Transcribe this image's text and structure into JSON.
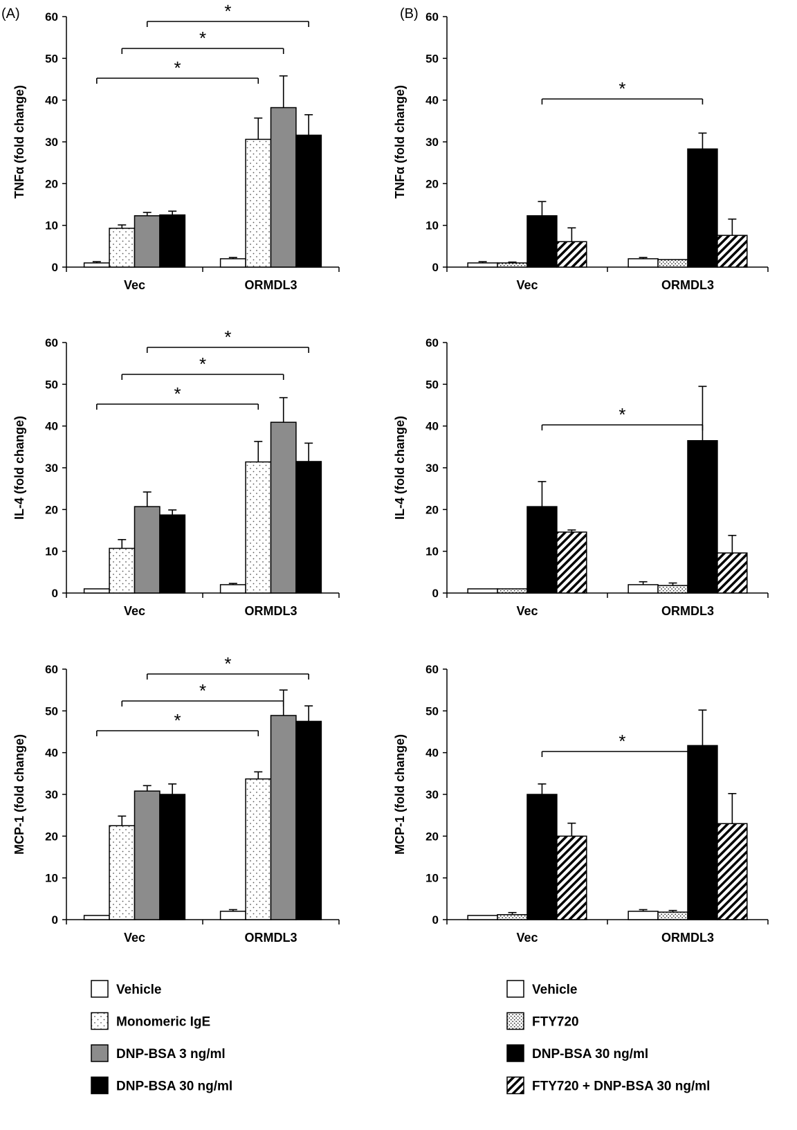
{
  "panels": [
    {
      "label": "(A)"
    },
    {
      "label": "(B)"
    }
  ],
  "colors": {
    "vehicle": "#ffffff",
    "monomeric_ige": "#ffffff",
    "dnp_3": "#8c8c8c",
    "dnp_30": "#000000",
    "fty720": "#ffffff",
    "fty720_dnp": "#ffffff",
    "stroke": "#000000"
  },
  "legends": [
    {
      "entries": [
        {
          "label": "Vehicle",
          "pattern": "vehicle"
        },
        {
          "label": "Monomeric IgE",
          "pattern": "dots"
        },
        {
          "label": "DNP-BSA 3 ng/ml",
          "pattern": "gray"
        },
        {
          "label": "DNP-BSA 30 ng/ml",
          "pattern": "black"
        }
      ]
    },
    {
      "entries": [
        {
          "label": "Vehicle",
          "pattern": "vehicle"
        },
        {
          "label": "FTY720",
          "pattern": "densedots"
        },
        {
          "label": "DNP-BSA 30 ng/ml",
          "pattern": "black"
        },
        {
          "label": "FTY720 + DNP-BSA 30 ng/ml",
          "pattern": "hatch"
        }
      ]
    }
  ],
  "chart_data": [
    {
      "type": "bar",
      "panel": "A",
      "ylabel": "TNFα (fold change)",
      "ylim": [
        0,
        60
      ],
      "yticks": [
        "0",
        "10",
        "20",
        "30",
        "40",
        "50",
        "60"
      ],
      "categories": [
        "Vec",
        "ORMDL3"
      ],
      "series": [
        {
          "name": "Vehicle",
          "pattern": "vehicle",
          "values": [
            1,
            2
          ],
          "errors": [
            0.3,
            0.3
          ]
        },
        {
          "name": "Monomeric IgE",
          "pattern": "dots",
          "values": [
            9.3,
            30.6
          ],
          "errors": [
            0.8,
            5.1
          ]
        },
        {
          "name": "DNP-BSA 3 ng/ml",
          "pattern": "gray",
          "values": [
            12.3,
            38.2
          ],
          "errors": [
            0.8,
            7.6
          ]
        },
        {
          "name": "DNP-BSA 30 ng/ml",
          "pattern": "black",
          "values": [
            12.5,
            31.6
          ],
          "errors": [
            0.9,
            4.9
          ]
        }
      ],
      "brackets": [
        {
          "from": [
            0,
            0
          ],
          "to": [
            1,
            1
          ],
          "label": "*"
        },
        {
          "from": [
            0,
            1
          ],
          "to": [
            1,
            2
          ],
          "label": "*"
        },
        {
          "from": [
            0,
            2
          ],
          "to": [
            1,
            3
          ],
          "label": "*"
        }
      ]
    },
    {
      "type": "bar",
      "panel": "A",
      "ylabel": "IL-4 (fold change)",
      "ylim": [
        0,
        60
      ],
      "yticks": [
        "0",
        "10",
        "20",
        "30",
        "40",
        "50",
        "60"
      ],
      "categories": [
        "Vec",
        "ORMDL3"
      ],
      "series": [
        {
          "name": "Vehicle",
          "pattern": "vehicle",
          "values": [
            1,
            2
          ],
          "errors": [
            0,
            0.3
          ]
        },
        {
          "name": "Monomeric IgE",
          "pattern": "dots",
          "values": [
            10.7,
            31.4
          ],
          "errors": [
            2.1,
            4.9
          ]
        },
        {
          "name": "DNP-BSA 3 ng/ml",
          "pattern": "gray",
          "values": [
            20.7,
            40.9
          ],
          "errors": [
            3.5,
            5.9
          ]
        },
        {
          "name": "DNP-BSA 30 ng/ml",
          "pattern": "black",
          "values": [
            18.7,
            31.5
          ],
          "errors": [
            1.2,
            4.4
          ]
        }
      ],
      "brackets": [
        {
          "from": [
            0,
            0
          ],
          "to": [
            1,
            1
          ],
          "label": "*"
        },
        {
          "from": [
            0,
            1
          ],
          "to": [
            1,
            2
          ],
          "label": "*"
        },
        {
          "from": [
            0,
            2
          ],
          "to": [
            1,
            3
          ],
          "label": "*"
        }
      ]
    },
    {
      "type": "bar",
      "panel": "A",
      "ylabel": "MCP-1 (fold change)",
      "ylim": [
        0,
        60
      ],
      "yticks": [
        "0",
        "10",
        "20",
        "30",
        "40",
        "50",
        "60"
      ],
      "categories": [
        "Vec",
        "ORMDL3"
      ],
      "series": [
        {
          "name": "Vehicle",
          "pattern": "vehicle",
          "values": [
            1,
            2
          ],
          "errors": [
            0,
            0.4
          ]
        },
        {
          "name": "Monomeric IgE",
          "pattern": "dots",
          "values": [
            22.5,
            33.7
          ],
          "errors": [
            2.3,
            1.7
          ]
        },
        {
          "name": "DNP-BSA 3 ng/ml",
          "pattern": "gray",
          "values": [
            30.8,
            48.9
          ],
          "errors": [
            1.3,
            6.1
          ]
        },
        {
          "name": "DNP-BSA 30 ng/ml",
          "pattern": "black",
          "values": [
            30,
            47.5
          ],
          "errors": [
            2.5,
            3.7
          ]
        }
      ],
      "brackets": [
        {
          "from": [
            0,
            0
          ],
          "to": [
            1,
            1
          ],
          "label": "*"
        },
        {
          "from": [
            0,
            1
          ],
          "to": [
            1,
            2
          ],
          "label": "*"
        },
        {
          "from": [
            0,
            2
          ],
          "to": [
            1,
            3
          ],
          "label": "*"
        }
      ]
    },
    {
      "type": "bar",
      "panel": "B",
      "ylabel": "TNFα (fold change)",
      "ylim": [
        0,
        60
      ],
      "yticks": [
        "0",
        "10",
        "20",
        "30",
        "40",
        "50",
        "60"
      ],
      "categories": [
        "Vec",
        "ORMDL3"
      ],
      "series": [
        {
          "name": "Vehicle",
          "pattern": "vehicle",
          "values": [
            1,
            2
          ],
          "errors": [
            0.3,
            0.3
          ]
        },
        {
          "name": "FTY720",
          "pattern": "densedots",
          "values": [
            1,
            1.8
          ],
          "errors": [
            0.2,
            0
          ]
        },
        {
          "name": "DNP-BSA 30 ng/ml",
          "pattern": "black",
          "values": [
            12.3,
            28.3
          ],
          "errors": [
            3.4,
            3.8
          ]
        },
        {
          "name": "FTY720 + DNP-BSA 30 ng/ml",
          "pattern": "hatch",
          "values": [
            6.1,
            7.6
          ],
          "errors": [
            3.3,
            3.9
          ]
        }
      ],
      "brackets": [
        {
          "from": [
            0,
            2
          ],
          "to": [
            1,
            2
          ],
          "label": "*"
        }
      ]
    },
    {
      "type": "bar",
      "panel": "B",
      "ylabel": "IL-4 (fold change)",
      "ylim": [
        0,
        60
      ],
      "yticks": [
        "0",
        "10",
        "20",
        "30",
        "40",
        "50",
        "60"
      ],
      "categories": [
        "Vec",
        "ORMDL3"
      ],
      "series": [
        {
          "name": "Vehicle",
          "pattern": "vehicle",
          "values": [
            1,
            2
          ],
          "errors": [
            0,
            0.7
          ]
        },
        {
          "name": "FTY720",
          "pattern": "densedots",
          "values": [
            1,
            1.8
          ],
          "errors": [
            0,
            0.6
          ]
        },
        {
          "name": "DNP-BSA 30 ng/ml",
          "pattern": "black",
          "values": [
            20.7,
            36.5
          ],
          "errors": [
            6,
            13
          ]
        },
        {
          "name": "FTY720 + DNP-BSA 30 ng/ml",
          "pattern": "hatch",
          "values": [
            14.6,
            9.6
          ],
          "errors": [
            0.5,
            4.2
          ]
        }
      ],
      "brackets": [
        {
          "from": [
            0,
            2
          ],
          "to": [
            1,
            2
          ],
          "label": "*"
        }
      ]
    },
    {
      "type": "bar",
      "panel": "B",
      "ylabel": "MCP-1 (fold change)",
      "ylim": [
        0,
        60
      ],
      "yticks": [
        "0",
        "10",
        "20",
        "30",
        "40",
        "50",
        "60"
      ],
      "categories": [
        "Vec",
        "ORMDL3"
      ],
      "series": [
        {
          "name": "Vehicle",
          "pattern": "vehicle",
          "values": [
            1,
            2
          ],
          "errors": [
            0,
            0.4
          ]
        },
        {
          "name": "FTY720",
          "pattern": "densedots",
          "values": [
            1.2,
            1.8
          ],
          "errors": [
            0.5,
            0.4
          ]
        },
        {
          "name": "DNP-BSA 30 ng/ml",
          "pattern": "black",
          "values": [
            30,
            41.7
          ],
          "errors": [
            2.5,
            8.5
          ]
        },
        {
          "name": "FTY720 + DNP-BSA 30 ng/ml",
          "pattern": "hatch",
          "values": [
            20,
            23
          ],
          "errors": [
            3.1,
            7.2
          ]
        }
      ],
      "brackets": [
        {
          "from": [
            0,
            2
          ],
          "to": [
            1,
            2
          ],
          "label": "*"
        }
      ]
    }
  ]
}
